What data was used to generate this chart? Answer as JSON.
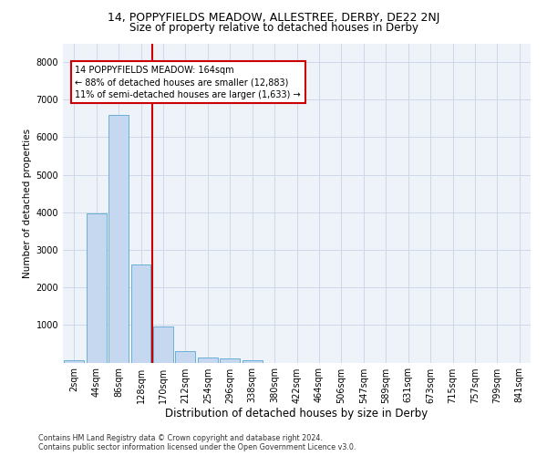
{
  "title1": "14, POPPYFIELDS MEADOW, ALLESTREE, DERBY, DE22 2NJ",
  "title2": "Size of property relative to detached houses in Derby",
  "xlabel": "Distribution of detached houses by size in Derby",
  "ylabel": "Number of detached properties",
  "annotation_line1": "14 POPPYFIELDS MEADOW: 164sqm",
  "annotation_line2": "← 88% of detached houses are smaller (12,883)",
  "annotation_line3": "11% of semi-detached houses are larger (1,633) →",
  "footer1": "Contains HM Land Registry data © Crown copyright and database right 2024.",
  "footer2": "Contains public sector information licensed under the Open Government Licence v3.0.",
  "bar_labels": [
    "2sqm",
    "44sqm",
    "86sqm",
    "128sqm",
    "170sqm",
    "212sqm",
    "254sqm",
    "296sqm",
    "338sqm",
    "380sqm",
    "422sqm",
    "464sqm",
    "506sqm",
    "547sqm",
    "589sqm",
    "631sqm",
    "673sqm",
    "715sqm",
    "757sqm",
    "799sqm",
    "841sqm"
  ],
  "bar_values": [
    70,
    3980,
    6600,
    2620,
    950,
    310,
    130,
    100,
    70,
    0,
    0,
    0,
    0,
    0,
    0,
    0,
    0,
    0,
    0,
    0,
    0
  ],
  "property_line_x": 3.5,
  "ylim": [
    0,
    8500
  ],
  "yticks": [
    0,
    1000,
    2000,
    3000,
    4000,
    5000,
    6000,
    7000,
    8000
  ],
  "bar_color": "#c5d8f0",
  "bar_edge_color": "#6baed6",
  "grid_color": "#cdd8ea",
  "line_color": "#cc0000",
  "bg_color": "#eef2f9",
  "annotation_box_color": "#cc0000",
  "title1_fontsize": 9,
  "title2_fontsize": 8.5,
  "xlabel_fontsize": 8.5,
  "ylabel_fontsize": 7.5,
  "tick_fontsize": 7,
  "ann_fontsize": 7,
  "footer_fontsize": 5.8
}
